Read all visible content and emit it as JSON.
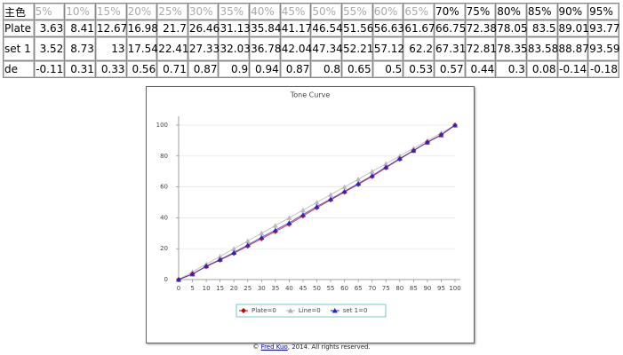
{
  "table": {
    "rows": [
      [
        "主色",
        "5%",
        "10%",
        "15%",
        "20%",
        "25%",
        "30%",
        "35%",
        "40%",
        "45%",
        "50%",
        "55%",
        "60%",
        "65%",
        "70%",
        "75%",
        "80%",
        "85%",
        "90%",
        "95%"
      ],
      [
        "Plate",
        "3.63",
        "8.41",
        "12.67",
        "16.98",
        "21.7",
        "26.46",
        "31.13",
        "35.84",
        "41.17",
        "46.54",
        "51.56",
        "56.63",
        "61.67",
        "66.75",
        "72.38",
        "78.05",
        "83.5",
        "89.01",
        "93.77"
      ],
      [
        "set 1",
        "3.52",
        "8.73",
        "13",
        "17.54",
        "22.41",
        "27.33",
        "32.03",
        "36.78",
        "42.04",
        "47.34",
        "52.21",
        "57.12",
        "62.2",
        "67.31",
        "72.81",
        "78.35",
        "83.58",
        "88.87",
        "93.59"
      ],
      [
        "de",
        "-0.11",
        "0.31",
        "0.33",
        "0.56",
        "0.71",
        "0.87",
        "0.9",
        "0.94",
        "0.87",
        "0.8",
        "0.65",
        "0.5",
        "0.53",
        "0.57",
        "0.44",
        "0.3",
        "0.08",
        "-0.14",
        "-0.18"
      ]
    ]
  },
  "chart_data": {
    "type": "line",
    "title": "Tone Curve",
    "x": [
      0,
      5,
      10,
      15,
      20,
      25,
      30,
      35,
      40,
      45,
      50,
      55,
      60,
      65,
      70,
      75,
      80,
      85,
      90,
      95,
      100
    ],
    "series": [
      {
        "name": "Line=0",
        "color": "#b0b0b0",
        "marker": "triangle",
        "values": [
          0,
          5,
          10,
          15,
          20,
          25,
          30,
          35,
          40,
          45,
          50,
          55,
          60,
          65,
          70,
          75,
          80,
          85,
          90,
          95,
          100
        ]
      },
      {
        "name": "Plate=0",
        "color": "#cc0000",
        "marker": "diamond",
        "values": [
          0,
          3.63,
          8.41,
          12.67,
          16.98,
          21.7,
          26.46,
          31.13,
          35.84,
          41.17,
          46.54,
          51.56,
          56.63,
          61.67,
          66.75,
          72.38,
          78.05,
          83.5,
          89.01,
          93.77,
          100
        ]
      },
      {
        "name": "set 1=0",
        "color": "#2222cc",
        "marker": "triangle",
        "values": [
          0,
          3.52,
          8.73,
          13,
          17.54,
          22.41,
          27.33,
          32.03,
          36.78,
          42.04,
          47.34,
          52.21,
          57.12,
          62.2,
          67.31,
          72.81,
          78.35,
          83.58,
          88.87,
          93.59,
          100
        ]
      }
    ],
    "legend_order": [
      1,
      0,
      2
    ],
    "xlim": [
      0,
      100
    ],
    "xticks": [
      0,
      5,
      10,
      15,
      20,
      25,
      30,
      35,
      40,
      45,
      50,
      55,
      60,
      65,
      70,
      75,
      80,
      85,
      90,
      95,
      100
    ],
    "ylim": [
      0,
      100
    ],
    "yticks": [
      0,
      20,
      40,
      60,
      80,
      100
    ],
    "grid": true
  },
  "footer": {
    "prefix": "©",
    "link": "Fred Kuo",
    "suffix": ", 2014. All rights reserved."
  }
}
